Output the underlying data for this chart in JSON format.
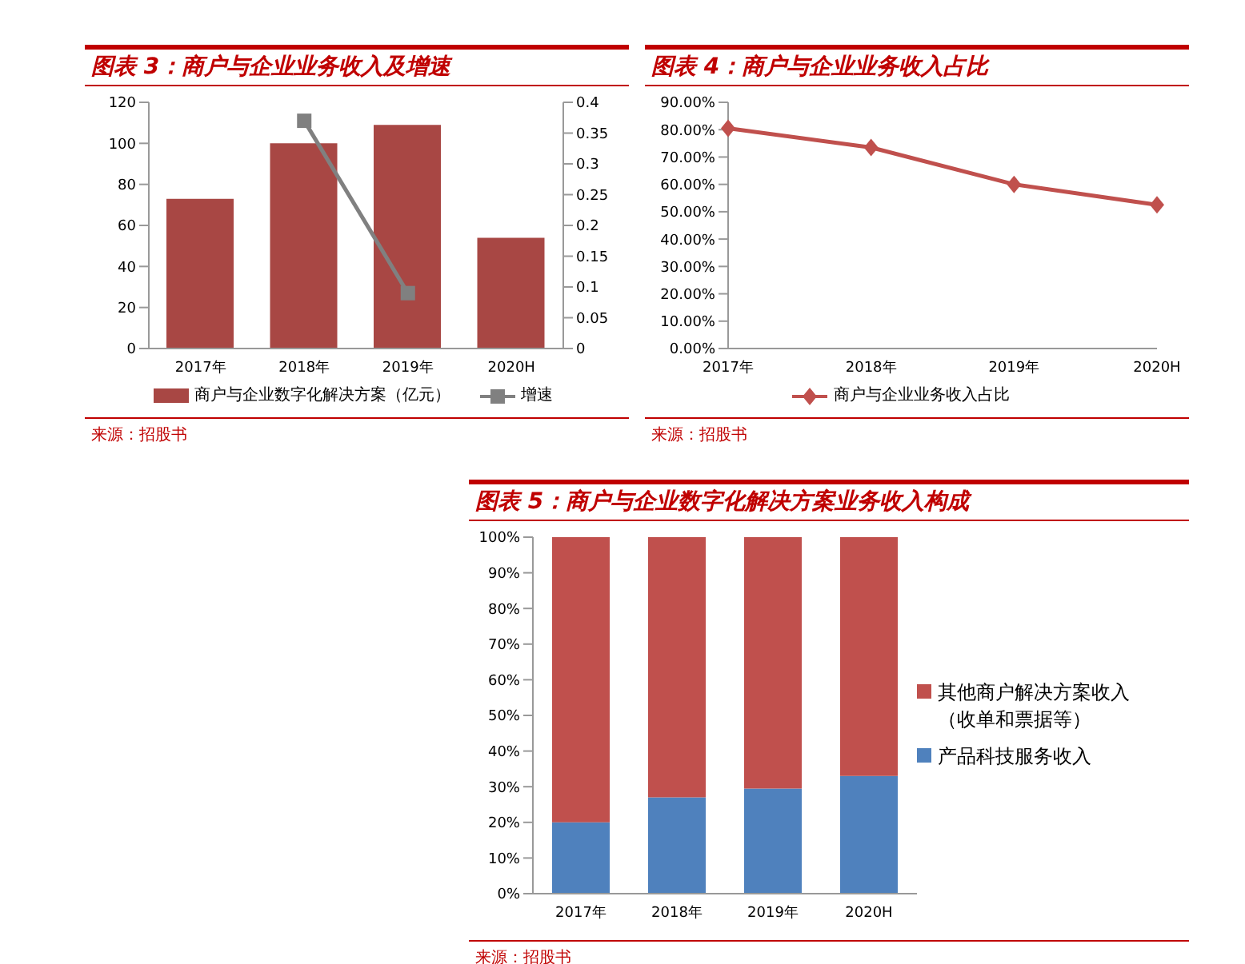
{
  "chart_data": [
    {
      "type": "bar",
      "title": "图表 3：商户与企业业务收入及增速",
      "categories": [
        "2017年",
        "2018年",
        "2019年",
        "2020H"
      ],
      "series": [
        {
          "name": "商户与企业数字化解决方案（亿元）",
          "color": "#a84744",
          "values": [
            73,
            100,
            109,
            54
          ]
        },
        {
          "name": "增速",
          "type": "line",
          "axis": "y2",
          "color": "#808080",
          "marker": "square",
          "values": [
            null,
            0.37,
            0.09,
            null
          ]
        }
      ],
      "ylim": [
        0,
        120
      ],
      "yticks": [
        0,
        20,
        40,
        60,
        80,
        100,
        120
      ],
      "y2lim": [
        0,
        0.4
      ],
      "y2ticks": [
        0,
        0.05,
        0.1,
        0.15,
        0.2,
        0.25,
        0.3,
        0.35,
        0.4
      ],
      "grid": false,
      "legend": "bottom",
      "annotations": [
        "来源：招股书"
      ]
    },
    {
      "type": "line",
      "title": "图表 4：商户与企业业务收入占比",
      "categories": [
        "2017年",
        "2018年",
        "2019年",
        "2020H"
      ],
      "series": [
        {
          "name": "商户与企业业务收入占比",
          "color": "#c0504d",
          "marker": "diamond",
          "values": [
            80.5,
            73.5,
            60,
            52.5
          ]
        }
      ],
      "ylim": [
        0,
        90
      ],
      "yticks": [
        {
          "value": 0,
          "label": "0.00%"
        },
        {
          "value": 10,
          "label": "10.00%"
        },
        {
          "value": 20,
          "label": "20.00%"
        },
        {
          "value": 30,
          "label": "30.00%"
        },
        {
          "value": 40,
          "label": "40.00%"
        },
        {
          "value": 50,
          "label": "50.00%"
        },
        {
          "value": 60,
          "label": "60.00%"
        },
        {
          "value": 70,
          "label": "70.00%"
        },
        {
          "value": 80,
          "label": "80.00%"
        },
        {
          "value": 90,
          "label": "90.00%"
        }
      ],
      "grid": false,
      "legend": "bottom",
      "annotations": [
        "来源：招股书"
      ]
    },
    {
      "type": "bar",
      "stacked": true,
      "title": "图表 5：商户与企业数字化解决方案业务收入构成",
      "categories": [
        "2017年",
        "2018年",
        "2019年",
        "2020H"
      ],
      "series": [
        {
          "name": "产品科技服务收入",
          "color": "#4f81bd",
          "values": [
            20,
            27,
            29.5,
            33
          ]
        },
        {
          "name": "其他商户解决方案收入（收单和票据等）",
          "color": "#c0504d",
          "values": [
            80,
            73,
            70.5,
            67
          ]
        }
      ],
      "ylim": [
        0,
        100
      ],
      "yticks": [
        {
          "value": 0,
          "label": "0%"
        },
        {
          "value": 10,
          "label": "10%"
        },
        {
          "value": 20,
          "label": "20%"
        },
        {
          "value": 30,
          "label": "30%"
        },
        {
          "value": 40,
          "label": "40%"
        },
        {
          "value": 50,
          "label": "50%"
        },
        {
          "value": 60,
          "label": "60%"
        },
        {
          "value": 70,
          "label": "70%"
        },
        {
          "value": 80,
          "label": "80%"
        },
        {
          "value": 90,
          "label": "90%"
        },
        {
          "value": 100,
          "label": "100%"
        }
      ],
      "grid": false,
      "legend": "right",
      "annotations": [
        "来源：招股书"
      ]
    }
  ]
}
